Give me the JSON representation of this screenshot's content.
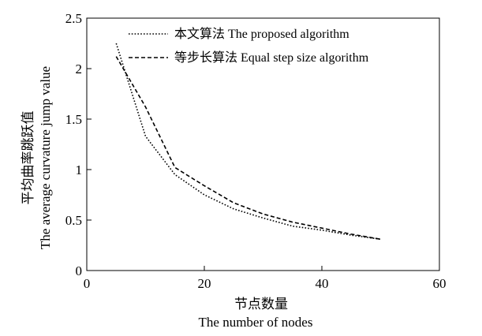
{
  "chart_data": {
    "type": "line",
    "xlabel": [
      "节点数量",
      "The number of nodes"
    ],
    "ylabel": [
      "平均曲率跳跃值",
      "The average curvature jump value"
    ],
    "xlim": [
      0,
      60
    ],
    "ylim": [
      0,
      2.5
    ],
    "xticks": [
      0,
      20,
      40,
      60
    ],
    "yticks": [
      0,
      0.5,
      1,
      1.5,
      2,
      2.5
    ],
    "xtick_labels": [
      "0",
      "20",
      "40",
      "60"
    ],
    "ytick_labels": [
      "0",
      "0.5",
      "1",
      "1.5",
      "2",
      "2.5"
    ],
    "grid": false,
    "legend_position": "top-right",
    "series": [
      {
        "name": "本文算法  The proposed algorithm",
        "style": "dotted",
        "color": "#000000",
        "x": [
          5,
          10,
          15,
          20,
          25,
          30,
          35,
          40,
          45,
          50
        ],
        "y": [
          2.25,
          1.33,
          0.95,
          0.75,
          0.61,
          0.52,
          0.44,
          0.4,
          0.35,
          0.31
        ]
      },
      {
        "name": "等步长算法  Equal step size algorithm",
        "style": "dashed",
        "color": "#000000",
        "x": [
          5,
          10,
          15,
          20,
          25,
          30,
          35,
          40,
          45,
          50
        ],
        "y": [
          2.12,
          1.62,
          1.02,
          0.84,
          0.67,
          0.56,
          0.48,
          0.42,
          0.36,
          0.31
        ]
      }
    ]
  }
}
